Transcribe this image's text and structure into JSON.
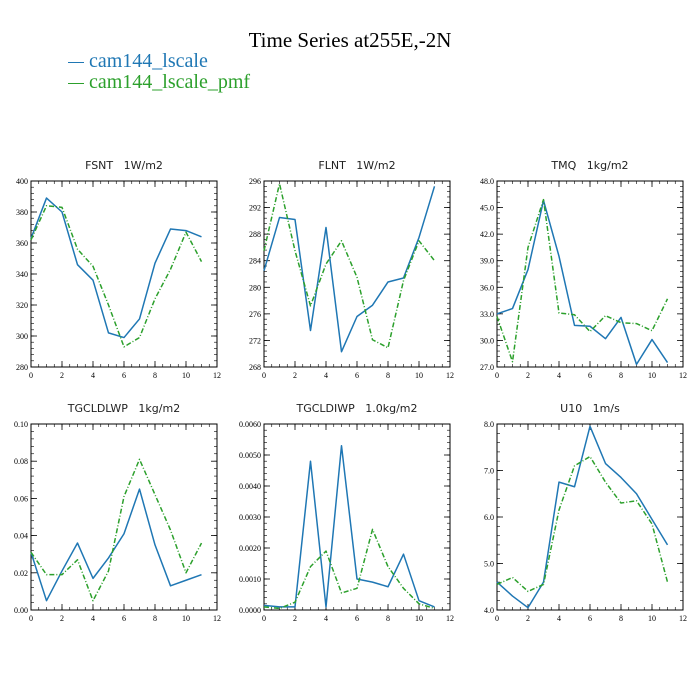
{
  "title": "Time Series at255E,-2N",
  "legend": [
    {
      "name": "cam144_lscale",
      "color": "#1f77b4"
    },
    {
      "name": "cam144_lscale_pmf",
      "color": "#2ca02c"
    }
  ],
  "chart_data": [
    {
      "type": "line",
      "title": "FSNT   1W/m2",
      "x": [
        0,
        1,
        2,
        3,
        4,
        5,
        6,
        7,
        8,
        9,
        10,
        11
      ],
      "xlim": [
        0,
        12
      ],
      "ylim": [
        280,
        400
      ],
      "xticks": [
        0,
        2,
        4,
        6,
        8,
        10,
        12
      ],
      "xtick_labels": [
        "0",
        "2",
        "4",
        "6",
        "8",
        "10",
        "12"
      ],
      "yticks": [
        280,
        300,
        320,
        340,
        360,
        380,
        400
      ],
      "ytick_labels": [
        "280",
        "300",
        "320",
        "340",
        "360",
        "380",
        "400"
      ],
      "series": [
        {
          "name": "cam144_lscale",
          "values": [
            363,
            389,
            380,
            346,
            336,
            302,
            299,
            311,
            347,
            369,
            368,
            364
          ]
        },
        {
          "name": "cam144_lscale_pmf",
          "values": [
            362,
            384,
            383,
            356,
            345,
            320,
            293,
            299,
            324,
            343,
            367,
            348
          ]
        }
      ]
    },
    {
      "type": "line",
      "title": "FLNT   1W/m2",
      "x": [
        0,
        1,
        2,
        3,
        4,
        5,
        6,
        7,
        8,
        9,
        10,
        11
      ],
      "xlim": [
        0,
        12
      ],
      "ylim": [
        268,
        296
      ],
      "xticks": [
        0,
        2,
        4,
        6,
        8,
        10,
        12
      ],
      "xtick_labels": [
        "0",
        "2",
        "4",
        "6",
        "8",
        "10",
        "12"
      ],
      "yticks": [
        268,
        272,
        276,
        280,
        284,
        288,
        292,
        296
      ],
      "ytick_labels": [
        "268",
        "272",
        "276",
        "280",
        "284",
        "288",
        "292",
        "296"
      ],
      "series": [
        {
          "name": "cam144_lscale",
          "values": [
            282.5,
            290.5,
            290.2,
            273.5,
            289,
            270.3,
            275.6,
            277.3,
            280.8,
            281.4,
            287.5,
            295.2
          ]
        },
        {
          "name": "cam144_lscale_pmf",
          "values": [
            285.5,
            295.6,
            285.5,
            277.2,
            283.5,
            287,
            281.5,
            272.1,
            270.9,
            281,
            287,
            284
          ]
        }
      ]
    },
    {
      "type": "line",
      "title": "TMQ   1kg/m2",
      "x": [
        0,
        1,
        2,
        3,
        4,
        5,
        6,
        7,
        8,
        9,
        10,
        11
      ],
      "xlim": [
        0,
        12
      ],
      "ylim": [
        27,
        48
      ],
      "xticks": [
        0,
        2,
        4,
        6,
        8,
        10,
        12
      ],
      "xtick_labels": [
        "0",
        "2",
        "4",
        "6",
        "8",
        "10",
        "12"
      ],
      "yticks": [
        27,
        30,
        33,
        36,
        39,
        42,
        45,
        48
      ],
      "ytick_labels": [
        "27.0",
        "30.0",
        "33.0",
        "36.0",
        "39.0",
        "42.0",
        "45.0",
        "48.0"
      ],
      "series": [
        {
          "name": "cam144_lscale",
          "values": [
            33,
            33.6,
            38,
            45.8,
            39.5,
            31.7,
            31.6,
            30.2,
            32.6,
            27.3,
            30.1,
            27.5
          ]
        },
        {
          "name": "cam144_lscale_pmf",
          "values": [
            32.7,
            27.6,
            40.5,
            45.9,
            33.1,
            32.9,
            31,
            32.8,
            32,
            31.9,
            31.1,
            34.7
          ]
        }
      ]
    },
    {
      "type": "line",
      "title": "TGCLDLWP   1kg/m2",
      "x": [
        0,
        1,
        2,
        3,
        4,
        5,
        6,
        7,
        8,
        9,
        10,
        11
      ],
      "xlim": [
        0,
        12
      ],
      "ylim": [
        0,
        0.1
      ],
      "xticks": [
        0,
        2,
        4,
        6,
        8,
        10,
        12
      ],
      "xtick_labels": [
        "0",
        "2",
        "4",
        "6",
        "8",
        "10",
        "12"
      ],
      "yticks": [
        0,
        0.02,
        0.04,
        0.06,
        0.08,
        0.1
      ],
      "ytick_labels": [
        "0.00",
        "0.02",
        "0.04",
        "0.06",
        "0.08",
        "0.10"
      ],
      "series": [
        {
          "name": "cam144_lscale",
          "values": [
            0.031,
            0.005,
            0.021,
            0.036,
            0.017,
            0.028,
            0.041,
            0.065,
            0.035,
            0.013,
            0.016,
            0.019
          ]
        },
        {
          "name": "cam144_lscale_pmf",
          "values": [
            0.031,
            0.019,
            0.019,
            0.027,
            0.005,
            0.021,
            0.061,
            0.081,
            0.062,
            0.043,
            0.02,
            0.036
          ]
        }
      ]
    },
    {
      "type": "line",
      "title": "TGCLDIWP   1.0kg/m2",
      "x": [
        0,
        1,
        2,
        3,
        4,
        5,
        6,
        7,
        8,
        9,
        10,
        11
      ],
      "xlim": [
        0,
        12
      ],
      "ylim": [
        0,
        0.006
      ],
      "xticks": [
        0,
        2,
        4,
        6,
        8,
        10,
        12
      ],
      "xtick_labels": [
        "0",
        "2",
        "4",
        "6",
        "8",
        "10",
        "12"
      ],
      "yticks": [
        0,
        0.001,
        0.002,
        0.003,
        0.004,
        0.005,
        0.006
      ],
      "ytick_labels": [
        "0.0000",
        "0.0010",
        "0.0020",
        "0.0030",
        "0.0040",
        "0.0050",
        "0.0060"
      ],
      "series": [
        {
          "name": "cam144_lscale",
          "values": [
            0.00015,
            0.0001,
            0.0001,
            0.0048,
            0.0001,
            0.0053,
            0.001,
            0.0009,
            0.00075,
            0.0018,
            0.0003,
            0.0001
          ]
        },
        {
          "name": "cam144_lscale_pmf",
          "values": [
            0.0001,
            5e-05,
            0.00025,
            0.0014,
            0.0019,
            0.00055,
            0.0007,
            0.0026,
            0.0014,
            0.0007,
            0.0002,
            5e-05
          ]
        }
      ]
    },
    {
      "type": "line",
      "title": "U10   1m/s",
      "x": [
        0,
        1,
        2,
        3,
        4,
        5,
        6,
        7,
        8,
        9,
        10,
        11
      ],
      "xlim": [
        0,
        12
      ],
      "ylim": [
        4,
        8
      ],
      "xticks": [
        0,
        2,
        4,
        6,
        8,
        10,
        12
      ],
      "xtick_labels": [
        "0",
        "2",
        "4",
        "6",
        "8",
        "10",
        "12"
      ],
      "yticks": [
        4,
        5,
        6,
        7,
        8
      ],
      "ytick_labels": [
        "4.0",
        "5.0",
        "6.0",
        "7.0",
        "8.0"
      ],
      "series": [
        {
          "name": "cam144_lscale",
          "values": [
            4.6,
            4.3,
            4.05,
            4.6,
            6.75,
            6.65,
            7.95,
            7.15,
            6.85,
            6.5,
            5.95,
            5.4
          ]
        },
        {
          "name": "cam144_lscale_pmf",
          "values": [
            4.55,
            4.7,
            4.4,
            4.55,
            6.15,
            7.1,
            7.3,
            6.75,
            6.3,
            6.35,
            5.85,
            4.6
          ]
        }
      ]
    }
  ]
}
